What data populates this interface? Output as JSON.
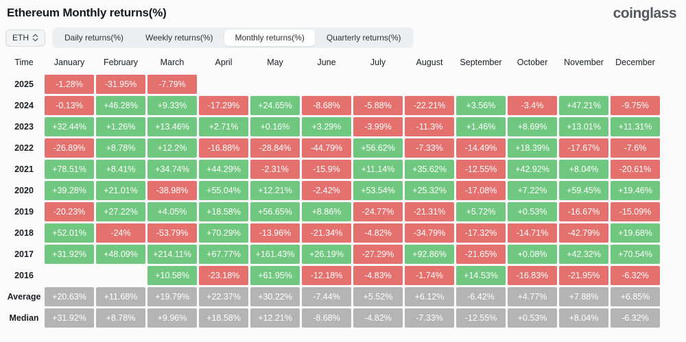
{
  "page": {
    "title": "Ethereum Monthly returns(%)",
    "logo": "coinglass"
  },
  "controls": {
    "symbol_select": {
      "value": "ETH"
    },
    "tabs": [
      {
        "label": "Daily returns(%)",
        "active": false
      },
      {
        "label": "Weekly returns(%)",
        "active": false
      },
      {
        "label": "Monthly returns(%)",
        "active": true
      },
      {
        "label": "Quarterly returns(%)",
        "active": false
      }
    ]
  },
  "colors": {
    "positive": "#70c77f",
    "negative": "#e5716f",
    "neutral": "#b4b4b4"
  },
  "chart_data": {
    "type": "table",
    "columns": [
      "Time",
      "January",
      "February",
      "March",
      "April",
      "May",
      "June",
      "July",
      "August",
      "September",
      "October",
      "November",
      "December"
    ],
    "rows": [
      {
        "label": "2025",
        "style": "auto",
        "values": [
          "-1.28%",
          "-31.95%",
          "-7.79%",
          "",
          "",
          "",
          "",
          "",
          "",
          "",
          "",
          ""
        ]
      },
      {
        "label": "2024",
        "style": "auto",
        "values": [
          "-0.13%",
          "+46.28%",
          "+9.33%",
          "-17.29%",
          "+24.65%",
          "-8.68%",
          "-5.88%",
          "-22.21%",
          "+3.56%",
          "-3.4%",
          "+47.21%",
          "-9.75%"
        ]
      },
      {
        "label": "2023",
        "style": "auto",
        "values": [
          "+32.44%",
          "+1.26%",
          "+13.46%",
          "+2.71%",
          "+0.16%",
          "+3.29%",
          "-3.99%",
          "-11.3%",
          "+1.46%",
          "+8.69%",
          "+13.01%",
          "+11.31%"
        ]
      },
      {
        "label": "2022",
        "style": "auto",
        "values": [
          "-26.89%",
          "+8.78%",
          "+12.2%",
          "-16.88%",
          "-28.84%",
          "-44.79%",
          "+56.62%",
          "-7.33%",
          "-14.49%",
          "+18.39%",
          "-17.67%",
          "-7.6%"
        ]
      },
      {
        "label": "2021",
        "style": "auto",
        "values": [
          "+78.51%",
          "+8.41%",
          "+34.74%",
          "+44.29%",
          "-2.31%",
          "-15.9%",
          "+11.14%",
          "+35.62%",
          "-12.55%",
          "+42.92%",
          "+8.04%",
          "-20.61%"
        ]
      },
      {
        "label": "2020",
        "style": "auto",
        "values": [
          "+39.28%",
          "+21.01%",
          "-38.98%",
          "+55.04%",
          "+12.21%",
          "-2.42%",
          "+53.54%",
          "+25.32%",
          "-17.08%",
          "+7.22%",
          "+59.45%",
          "+19.46%"
        ]
      },
      {
        "label": "2019",
        "style": "auto",
        "values": [
          "-20.23%",
          "+27.22%",
          "+4.05%",
          "+18.58%",
          "+56.65%",
          "+8.86%",
          "-24.77%",
          "-21.31%",
          "+5.72%",
          "+0.53%",
          "-16.67%",
          "-15.09%"
        ]
      },
      {
        "label": "2018",
        "style": "auto",
        "values": [
          "+52.01%",
          "-24%",
          "-53.79%",
          "+70.29%",
          "-13.96%",
          "-21.34%",
          "-4.82%",
          "-34.79%",
          "-17.32%",
          "-14.71%",
          "-42.79%",
          "+19.68%"
        ]
      },
      {
        "label": "2017",
        "style": "auto",
        "values": [
          "+31.92%",
          "+48.09%",
          "+214.11%",
          "+67.77%",
          "+161.43%",
          "+26.19%",
          "-27.29%",
          "+92.86%",
          "-21.65%",
          "+0.08%",
          "+42.32%",
          "+70.54%"
        ]
      },
      {
        "label": "2016",
        "style": "auto",
        "values": [
          "",
          "",
          "+10.58%",
          "-23.18%",
          "+61.95%",
          "-12.18%",
          "-4.83%",
          "-1.74%",
          "+14.53%",
          "-16.83%",
          "-21.95%",
          "-6.32%"
        ]
      },
      {
        "label": "Average",
        "style": "gray",
        "values": [
          "+20.63%",
          "+11.68%",
          "+19.79%",
          "+22.37%",
          "+30.22%",
          "-7.44%",
          "+5.52%",
          "+6.12%",
          "-6.42%",
          "+4.77%",
          "+7.88%",
          "+6.85%"
        ]
      },
      {
        "label": "Median",
        "style": "gray",
        "values": [
          "+31.92%",
          "+8.78%",
          "+9.96%",
          "+18.58%",
          "+12.21%",
          "-8.68%",
          "-4.82%",
          "-7.33%",
          "-12.55%",
          "+0.53%",
          "+8.04%",
          "-6.32%"
        ]
      }
    ]
  }
}
